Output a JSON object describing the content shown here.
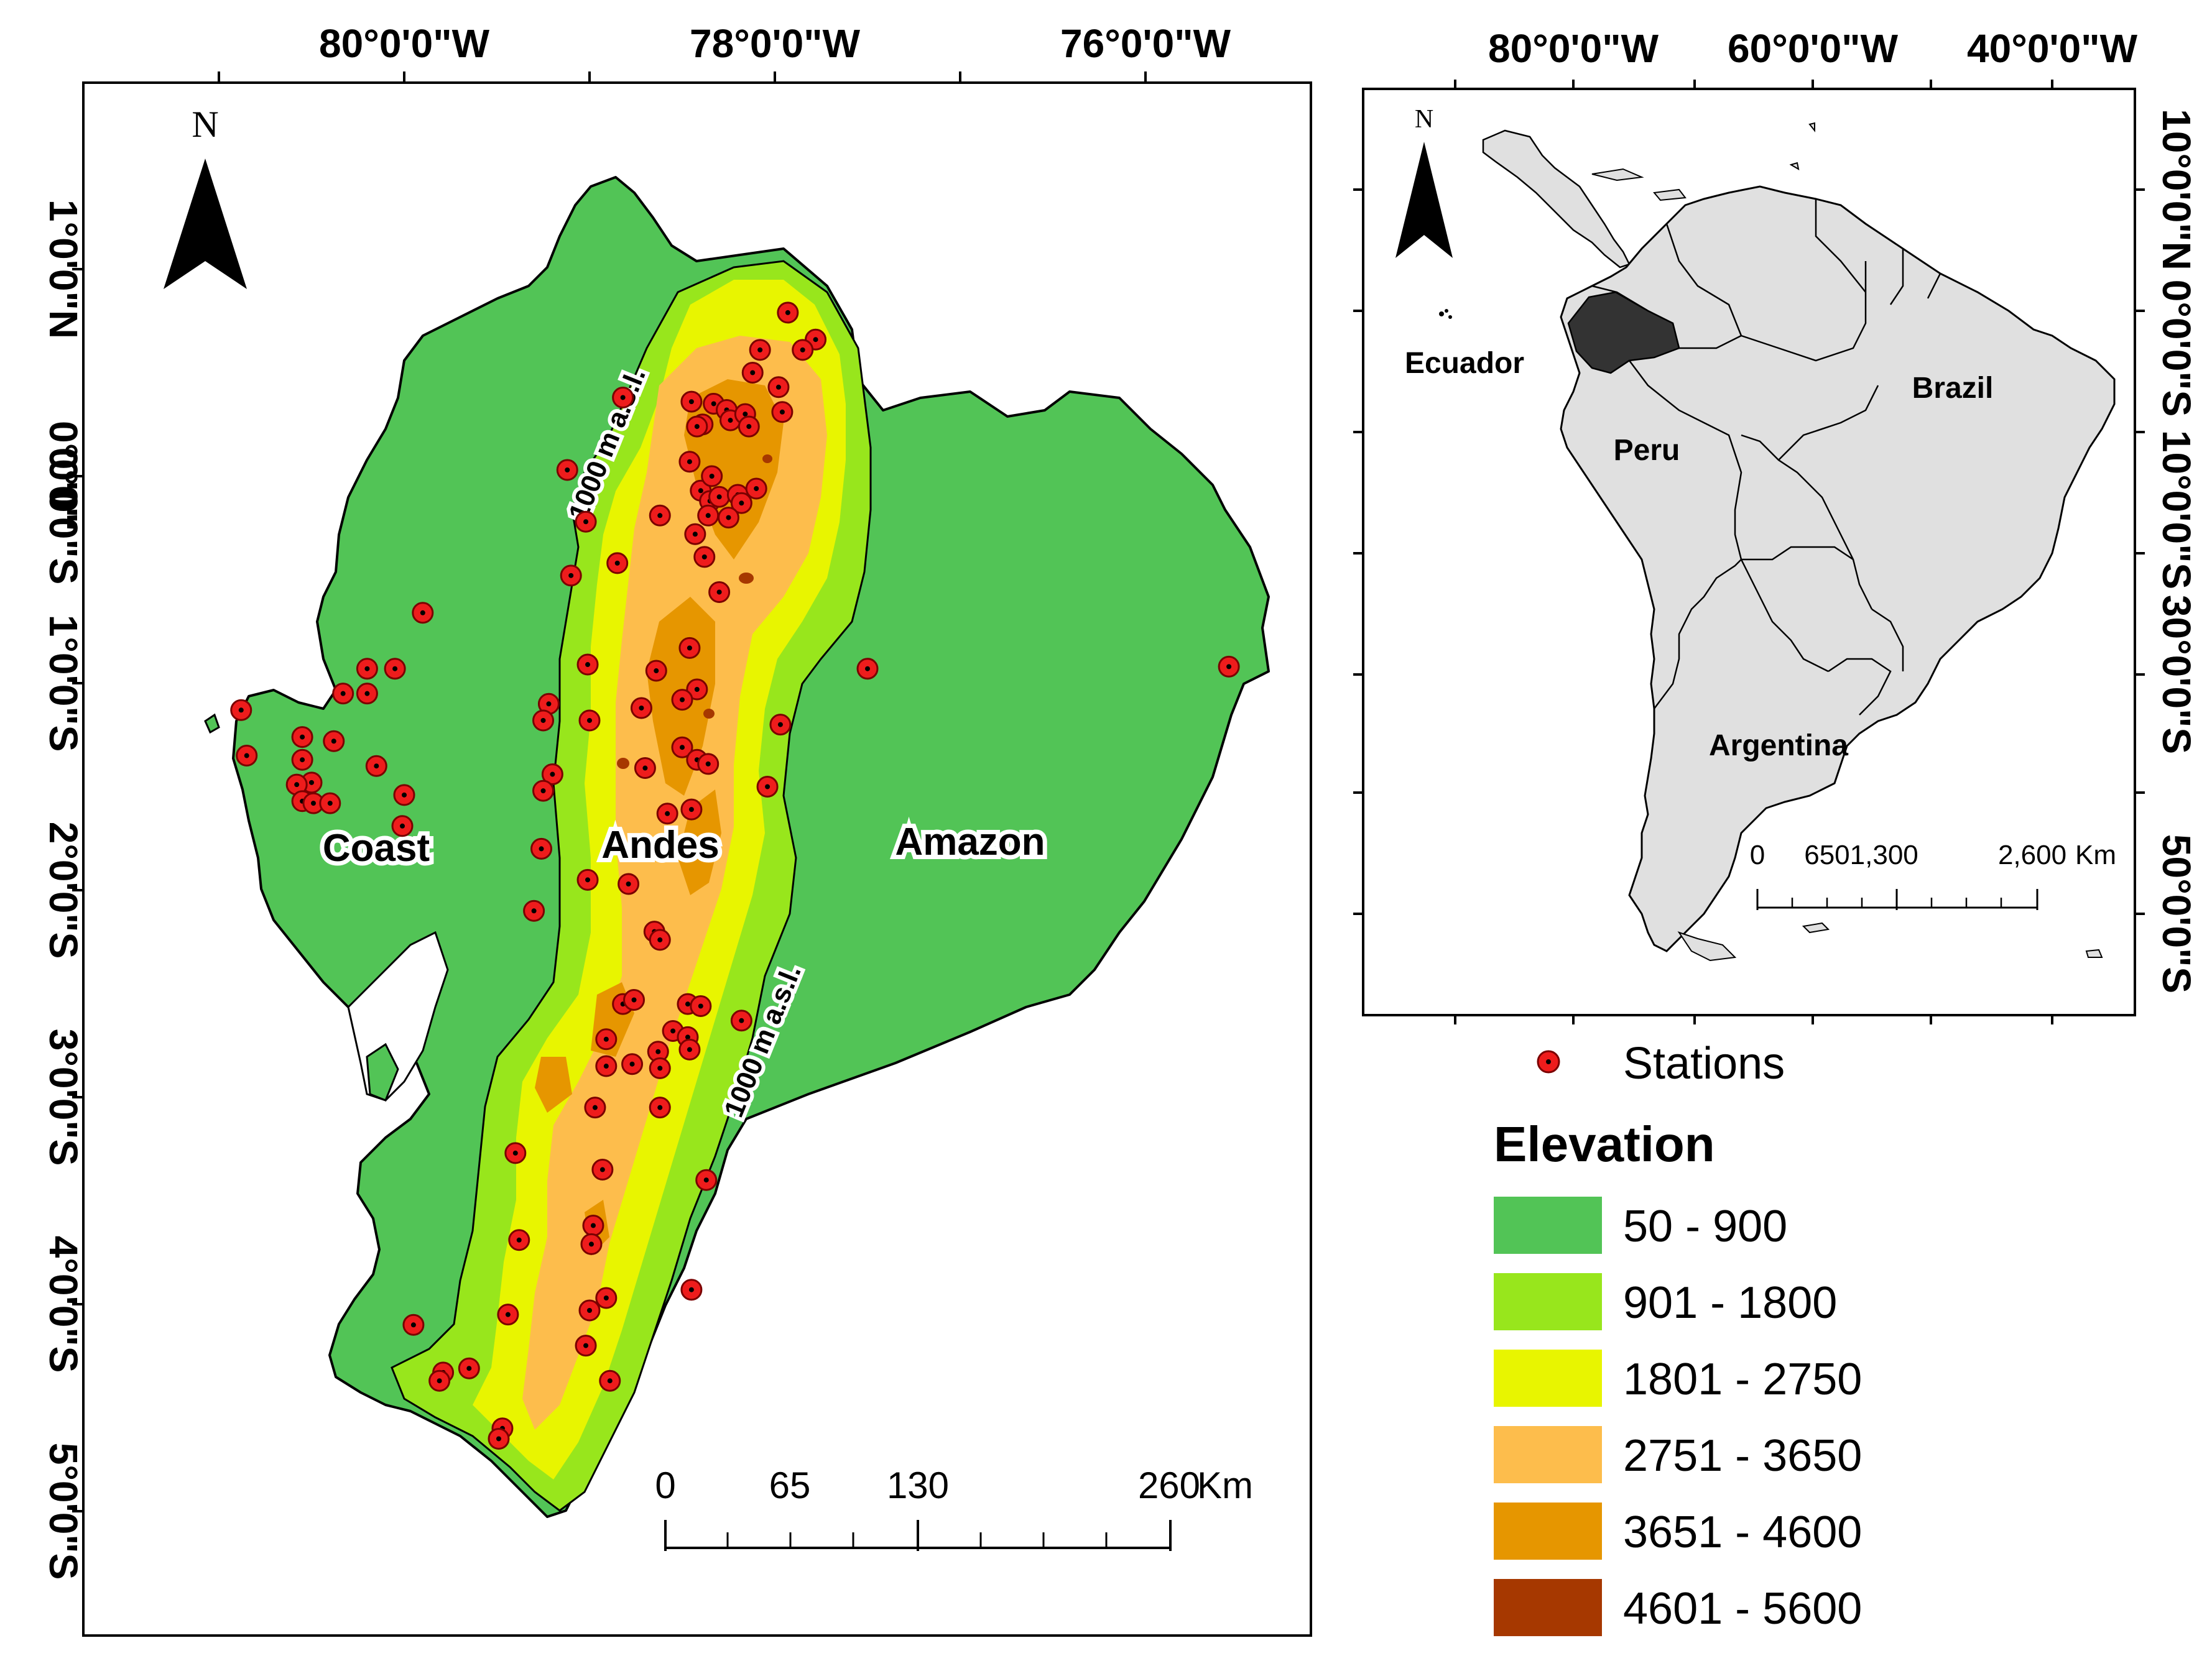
{
  "main_map": {
    "top_ticks": [
      "80°0'0\"W",
      "78°0'0\"W",
      "76°0'0\"W"
    ],
    "left_ticks": [
      "1°0'0\"N",
      "0°0'0\"",
      "0°0'0\"S",
      "1°0'0\"S",
      "2°0'0\"S",
      "3°0'0\"S",
      "4°0'0\"S",
      "5°0'0\"S"
    ],
    "north_label": "N",
    "regions": {
      "coast": "Coast",
      "andes": "Andes",
      "amazon": "Amazon"
    },
    "contour_labels": [
      "1000 m a.s.l.",
      "1000 m a.s.l."
    ],
    "scale": {
      "labels": [
        "0",
        "65",
        "130",
        "260"
      ],
      "unit": "Km"
    }
  },
  "inset_map": {
    "top_ticks": [
      "80°0'0\"W",
      "60°0'0\"W",
      "40°0'0\"W"
    ],
    "right_ticks": [
      "10°0'0\"N",
      "0°0'0\"S",
      "10°0'0\"S",
      "30°0'0\"S",
      "50°0'0\"S"
    ],
    "north_label": "N",
    "countries": {
      "ecuador": "Ecuador",
      "peru": "Peru",
      "brazil": "Brazil",
      "argentina": "Argentina"
    },
    "scale": {
      "labels": [
        "0",
        "6501,300",
        "2,600"
      ],
      "unit": "Km"
    }
  },
  "legend": {
    "stations_label": "Stations",
    "elevation_title": "Elevation",
    "classes": [
      {
        "label": "50 - 900",
        "color": "#52c456"
      },
      {
        "label": "901 - 1800",
        "color": "#98e61c"
      },
      {
        "label": "1801 - 2750",
        "color": "#e8f500"
      },
      {
        "label": "2751 - 3650",
        "color": "#fdbd4c"
      },
      {
        "label": "3651 - 4600",
        "color": "#e69600"
      },
      {
        "label": "4601 - 5600",
        "color": "#a63800"
      }
    ]
  },
  "colors": {
    "station_fill": "#ee1c1c",
    "inset_land": "#e0e0e0",
    "ecuador_fill": "#333333"
  },
  "stations": [
    {
      "lon": -77.93,
      "lat": 0.79
    },
    {
      "lon": -77.78,
      "lat": 0.66
    },
    {
      "lon": -77.85,
      "lat": 0.61
    },
    {
      "lon": -78.08,
      "lat": 0.61
    },
    {
      "lon": -78.12,
      "lat": 0.5
    },
    {
      "lon": -77.98,
      "lat": 0.43
    },
    {
      "lon": -77.96,
      "lat": 0.31
    },
    {
      "lon": -78.45,
      "lat": 0.36
    },
    {
      "lon": -78.33,
      "lat": 0.35
    },
    {
      "lon": -78.26,
      "lat": 0.32
    },
    {
      "lon": -78.24,
      "lat": 0.27
    },
    {
      "lon": -78.16,
      "lat": 0.3
    },
    {
      "lon": -78.14,
      "lat": 0.24
    },
    {
      "lon": -78.39,
      "lat": 0.25
    },
    {
      "lon": -78.42,
      "lat": 0.24
    },
    {
      "lon": -78.46,
      "lat": 0.07
    },
    {
      "lon": -78.4,
      "lat": -0.07
    },
    {
      "lon": -78.34,
      "lat": 0.0
    },
    {
      "lon": -78.35,
      "lat": -0.12
    },
    {
      "lon": -78.3,
      "lat": -0.1
    },
    {
      "lon": -78.2,
      "lat": -0.09
    },
    {
      "lon": -78.18,
      "lat": -0.13
    },
    {
      "lon": -78.1,
      "lat": -0.06
    },
    {
      "lon": -78.25,
      "lat": -0.2
    },
    {
      "lon": -78.36,
      "lat": -0.19
    },
    {
      "lon": -78.43,
      "lat": -0.28
    },
    {
      "lon": -78.38,
      "lat": -0.39
    },
    {
      "lon": -78.62,
      "lat": -0.19
    },
    {
      "lon": -78.82,
      "lat": 0.38
    },
    {
      "lon": -79.12,
      "lat": 0.03
    },
    {
      "lon": -79.02,
      "lat": -0.22
    },
    {
      "lon": -79.1,
      "lat": -0.48
    },
    {
      "lon": -78.85,
      "lat": -0.42
    },
    {
      "lon": -78.3,
      "lat": -0.56
    },
    {
      "lon": -78.46,
      "lat": -0.83
    },
    {
      "lon": -79.01,
      "lat": -0.91
    },
    {
      "lon": -78.64,
      "lat": -0.94
    },
    {
      "lon": -78.42,
      "lat": -1.03
    },
    {
      "lon": -78.5,
      "lat": -1.08
    },
    {
      "lon": -78.72,
      "lat": -1.12
    },
    {
      "lon": -79.0,
      "lat": -1.18
    },
    {
      "lon": -78.7,
      "lat": -1.41
    },
    {
      "lon": -78.5,
      "lat": -1.31
    },
    {
      "lon": -78.42,
      "lat": -1.37
    },
    {
      "lon": -78.36,
      "lat": -1.39
    },
    {
      "lon": -78.58,
      "lat": -1.63
    },
    {
      "lon": -78.45,
      "lat": -1.61
    },
    {
      "lon": -79.22,
      "lat": -1.1
    },
    {
      "lon": -79.25,
      "lat": -1.18
    },
    {
      "lon": -79.2,
      "lat": -1.44
    },
    {
      "lon": -79.25,
      "lat": -1.52
    },
    {
      "lon": -79.26,
      "lat": -1.8
    },
    {
      "lon": -79.01,
      "lat": -1.95
    },
    {
      "lon": -78.79,
      "lat": -1.97
    },
    {
      "lon": -79.3,
      "lat": -2.1
    },
    {
      "lon": -77.97,
      "lat": -1.2
    },
    {
      "lon": -78.04,
      "lat": -1.5
    },
    {
      "lon": -77.5,
      "lat": -0.93
    },
    {
      "lon": -75.55,
      "lat": -0.92
    },
    {
      "lon": -79.9,
      "lat": -0.66
    },
    {
      "lon": -80.05,
      "lat": -0.93
    },
    {
      "lon": -80.2,
      "lat": -0.93
    },
    {
      "lon": -80.2,
      "lat": -1.05
    },
    {
      "lon": -80.33,
      "lat": -1.05
    },
    {
      "lon": -80.88,
      "lat": -1.13
    },
    {
      "lon": -80.85,
      "lat": -1.35
    },
    {
      "lon": -80.55,
      "lat": -1.26
    },
    {
      "lon": -80.55,
      "lat": -1.37
    },
    {
      "lon": -80.5,
      "lat": -1.48
    },
    {
      "lon": -80.58,
      "lat": -1.49
    },
    {
      "lon": -80.55,
      "lat": -1.57
    },
    {
      "lon": -80.49,
      "lat": -1.58
    },
    {
      "lon": -80.4,
      "lat": -1.58
    },
    {
      "lon": -80.38,
      "lat": -1.28
    },
    {
      "lon": -80.15,
      "lat": -1.4
    },
    {
      "lon": -80.0,
      "lat": -1.54
    },
    {
      "lon": -80.01,
      "lat": -1.69
    },
    {
      "lon": -78.65,
      "lat": -2.2
    },
    {
      "lon": -78.62,
      "lat": -2.24
    },
    {
      "lon": -78.82,
      "lat": -2.55
    },
    {
      "lon": -78.76,
      "lat": -2.53
    },
    {
      "lon": -78.47,
      "lat": -2.55
    },
    {
      "lon": -78.4,
      "lat": -2.56
    },
    {
      "lon": -78.55,
      "lat": -2.68
    },
    {
      "lon": -78.47,
      "lat": -2.71
    },
    {
      "lon": -78.46,
      "lat": -2.77
    },
    {
      "lon": -78.63,
      "lat": -2.78
    },
    {
      "lon": -78.91,
      "lat": -2.72
    },
    {
      "lon": -78.91,
      "lat": -2.85
    },
    {
      "lon": -78.77,
      "lat": -2.84
    },
    {
      "lon": -78.62,
      "lat": -2.86
    },
    {
      "lon": -78.18,
      "lat": -2.63
    },
    {
      "lon": -78.97,
      "lat": -3.05
    },
    {
      "lon": -78.62,
      "lat": -3.05
    },
    {
      "lon": -79.4,
      "lat": -3.27
    },
    {
      "lon": -78.93,
      "lat": -3.35
    },
    {
      "lon": -78.37,
      "lat": -3.4
    },
    {
      "lon": -78.98,
      "lat": -3.62
    },
    {
      "lon": -78.99,
      "lat": -3.71
    },
    {
      "lon": -79.38,
      "lat": -3.69
    },
    {
      "lon": -78.45,
      "lat": -3.93
    },
    {
      "lon": -78.91,
      "lat": -3.97
    },
    {
      "lon": -79.0,
      "lat": -4.03
    },
    {
      "lon": -79.44,
      "lat": -4.05
    },
    {
      "lon": -79.95,
      "lat": -4.1
    },
    {
      "lon": -79.02,
      "lat": -4.2
    },
    {
      "lon": -78.89,
      "lat": -4.37
    },
    {
      "lon": -79.65,
      "lat": -4.31
    },
    {
      "lon": -79.79,
      "lat": -4.33
    },
    {
      "lon": -79.81,
      "lat": -4.37
    },
    {
      "lon": -79.47,
      "lat": -4.6
    },
    {
      "lon": -79.49,
      "lat": -4.65
    }
  ]
}
